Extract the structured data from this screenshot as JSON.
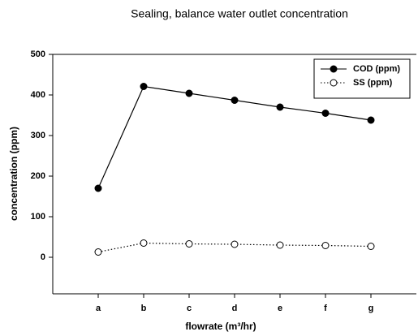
{
  "chart_data": {
    "type": "line",
    "title": "Sealing, balance water outlet concentration",
    "xlabel": "flowrate (m³/hr)",
    "ylabel": "concentration (ppm)",
    "categories": [
      "a",
      "b",
      "c",
      "d",
      "e",
      "f",
      "g"
    ],
    "series": [
      {
        "name": "COD (ppm)",
        "color": "#000000",
        "linestyle": "solid",
        "marker_fill": "#000000",
        "values": [
          170,
          421,
          404,
          387,
          370,
          355,
          338
        ]
      },
      {
        "name": "SS (ppm)",
        "color": "#000000",
        "linestyle": "dotted",
        "marker_fill": "#ffffff",
        "values": [
          13,
          35,
          33,
          32,
          30,
          29,
          27
        ]
      }
    ],
    "ylim": [
      -90,
      500
    ],
    "yticks": [
      0,
      100,
      200,
      300,
      400,
      500
    ],
    "legend": "upper right"
  }
}
